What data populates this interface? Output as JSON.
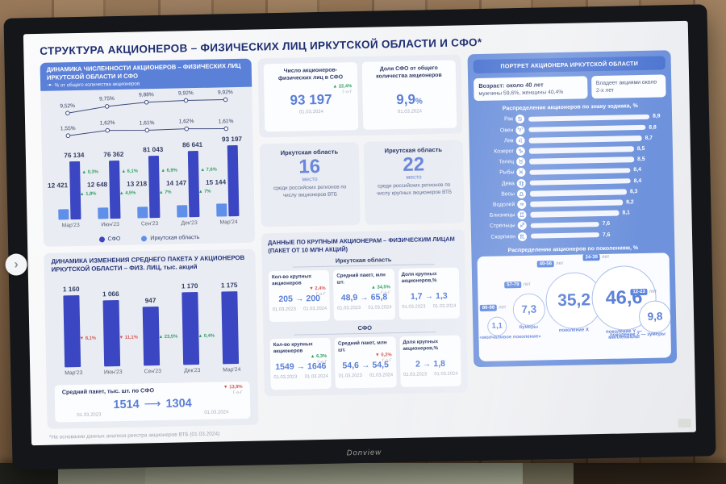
{
  "meta": {
    "brand": "Donview"
  },
  "page": {
    "title": "СТРУКТУРА АКЦИОНЕРОВ – ФИЗИЧЕСКИХ ЛИЦ ИРКУТСКОЙ ОБЛАСТИ И СФО*",
    "footnote": "*На основании данных анализа реестра акционеров ВТБ (01.03.2024)"
  },
  "colors": {
    "accent": "#5b7fd8",
    "dark_bar": "#3b47c2",
    "light_bar": "#5f8fe8",
    "panel_blue": "#6e92dc",
    "header_blue": "#5b80d8",
    "up": "#2f9e60",
    "down": "#d9534f",
    "navy": "#24316f"
  },
  "chart_data": [
    {
      "id": "shareholders_dynamics",
      "type": "bar",
      "title": "ДИНАМИКА ЧИСЛЕННОСТИ АКЦИОНЕРОВ – ФИЗИЧЕСКИХ ЛИЦ ИРКУТСКОЙ ОБЛАСТИ И СФО",
      "line_legend": "% от общего количества акционеров",
      "categories": [
        "Мар'23",
        "Июн'23",
        "Сен'23",
        "Дек'23",
        "Мар'24"
      ],
      "legend_position": "bottom",
      "series": [
        {
          "name": "СФО",
          "type": "bar",
          "values": [
            76134,
            76362,
            81043,
            86641,
            93197
          ],
          "labels": [
            "76 134",
            "76 362",
            "81 043",
            "86 641",
            "93 197"
          ],
          "deltas": [
            null,
            "▲ 0,3%",
            "▲ 6,1%",
            "▲ 6,9%",
            "▲ 7,6%"
          ]
        },
        {
          "name": "Иркутская область",
          "type": "bar",
          "values": [
            12421,
            12648,
            13218,
            14147,
            15144
          ],
          "labels": [
            "12 421",
            "12 648",
            "13 218",
            "14 147",
            "15 144"
          ],
          "deltas": [
            null,
            "▲ 1,8%",
            "▲ 4,5%",
            "▲ 7%",
            "▲ 7%"
          ]
        },
        {
          "name": "% СФО от общего количества акционеров",
          "type": "line",
          "values": [
            9.52,
            9.75,
            9.88,
            9.92,
            9.92
          ],
          "labels": [
            "9,52%",
            "9,75%",
            "9,88%",
            "9,92%",
            "9,92%"
          ]
        },
        {
          "name": "% Иркутской области от общего количества акционеров",
          "type": "line",
          "values": [
            1.55,
            1.62,
            1.61,
            1.62,
            1.61
          ],
          "labels": [
            "1,55%",
            "1,62%",
            "1,61%",
            "1,62%",
            "1,61%"
          ]
        }
      ]
    },
    {
      "id": "avg_package_dynamics",
      "type": "bar",
      "title": "ДИНАМИКА ИЗМЕНЕНИЯ СРЕДНЕГО ПАКЕТА У АКЦИОНЕРОВ ИРКУТСКОЙ ОБЛАСТИ – ФИЗ. ЛИЦ, тыс. акций",
      "categories": [
        "Мар'23",
        "Июн'23",
        "Сен'23",
        "Дек'23",
        "Мар'24"
      ],
      "values": [
        1160,
        1066,
        947,
        1170,
        1175
      ],
      "labels": [
        "1 160",
        "1 066",
        "947",
        "1 170",
        "1 175"
      ],
      "deltas": [
        null,
        "▼ 8,1%",
        "▼ 11,1%",
        "▲ 23,5%",
        "▲ 0,4%"
      ]
    },
    {
      "id": "zodiac_distribution",
      "type": "bar",
      "orientation": "horizontal",
      "title": "Распределение акционеров по знаку зодиака, %",
      "categories": [
        "Рак",
        "Овен",
        "Лев",
        "Козерог",
        "Телец",
        "Рыбы",
        "Дева",
        "Весы",
        "Водолей",
        "Близнецы",
        "Стрельцы",
        "Скорпион"
      ],
      "icons": [
        "♋",
        "♈",
        "♌",
        "♑",
        "♉",
        "♓",
        "♍",
        "♎",
        "♒",
        "♊",
        "♐",
        "♏"
      ],
      "values": [
        8.9,
        8.8,
        8.7,
        8.5,
        8.5,
        8.4,
        8.4,
        8.3,
        8.2,
        8.1,
        7.6,
        7.6
      ],
      "labels": [
        "8,9",
        "8,8",
        "8,7",
        "8,5",
        "8,5",
        "8,4",
        "8,4",
        "8,3",
        "8,2",
        "8,1",
        "7,6",
        "7,6"
      ]
    },
    {
      "id": "generations_distribution",
      "type": "bubble",
      "title": "Распределение акционеров по поколениям, %",
      "items": [
        {
          "age_range": "80-98",
          "age_suffix": "лет",
          "value": 1.1,
          "label": "1,1",
          "name": "«молчаливое поколение»"
        },
        {
          "age_range": "57-79",
          "age_suffix": "лет",
          "value": 7.3,
          "label": "7,3",
          "name": "бумеры"
        },
        {
          "age_range": "40-56",
          "age_suffix": "лет",
          "value": 35.2,
          "label": "35,2",
          "name": "поколение X"
        },
        {
          "age_range": "24-39",
          "age_suffix": "лет",
          "value": 46.6,
          "label": "46,6",
          "name": "поколение Y — миллениалы"
        },
        {
          "age_range": "12-23",
          "age_suffix": "лет",
          "value": 9.8,
          "label": "9,8",
          "name": "поколение Z — зумеры"
        }
      ]
    }
  ],
  "stat_cards": {
    "sfo_count": {
      "title": "Число акционеров-физических лиц в СФО",
      "delta": "▲ 22,4%",
      "delta_sub": "Г-о-Г",
      "value": "93 197",
      "date": "01.03.2024"
    },
    "sfo_share": {
      "title": "Доля СФО от общего количества акционеров",
      "value": "9,9",
      "suffix": "%",
      "date": "01.03.2024"
    }
  },
  "rank_cards": [
    {
      "region": "Иркутская область",
      "rank": "16",
      "rank_word": "место",
      "description": "среди российских регионов по числу акционеров ВТБ"
    },
    {
      "region": "Иркутская область",
      "rank": "22",
      "rank_word": "место",
      "description": "среди российских регионов по числу крупных акционеров ВТБ"
    }
  ],
  "avg_package_sfo": {
    "title": "Средний пакет, тыс. шт. по СФО",
    "delta": "▼ 13,9%",
    "delta_sub": "Г-о-Г",
    "from": "1514",
    "to": "1304",
    "date_from": "01.03.2023",
    "date_to": "01.03.2024"
  },
  "large_holders": {
    "title": "ДАННЫЕ ПО КРУПНЫМ АКЦИОНЕРАМ – ФИЗИЧЕСКИМ ЛИЦАМ (ПАКЕТ ОТ 10 МЛН АКЦИЙ)",
    "sections": [
      {
        "name": "Иркутская область",
        "cards": [
          {
            "title": "Кол-во крупных акционеров",
            "delta": "▼ 2,4%",
            "delta_sub": "Г-о-Г",
            "from": "205",
            "to": "200",
            "date_from": "01.03.2023",
            "date_to": "01.03.2024"
          },
          {
            "title": "Средний пакет, млн шт.",
            "delta": "▲ 34,5%",
            "delta_sub": "Г-о-Г",
            "from": "48,9",
            "to": "65,8",
            "date_from": "01.03.2023",
            "date_to": "01.03.2024"
          },
          {
            "title": "Доля крупных акционеров,%",
            "delta": "",
            "delta_sub": "",
            "from": "1,7",
            "to": "1,3",
            "date_from": "01.03.2023",
            "date_to": "01.03.2024"
          }
        ]
      },
      {
        "name": "СФО",
        "cards": [
          {
            "title": "Кол-во крупных акционеров",
            "delta": "▲ 6,3%",
            "delta_sub": "Г-о-Г",
            "from": "1549",
            "to": "1646",
            "date_from": "01.03.2023",
            "date_to": "01.03.2024"
          },
          {
            "title": "Средний пакет, млн шт.",
            "delta": "▼ 0,2%",
            "delta_sub": "Г-о-Г",
            "from": "54,6",
            "to": "54,5",
            "date_from": "01.03.2023",
            "date_to": "01.03.2024"
          },
          {
            "title": "Доля крупных акционеров,%",
            "delta": "",
            "delta_sub": "",
            "from": "2",
            "to": "1,8",
            "date_from": "01.03.2023",
            "date_to": "01.03.2024"
          }
        ]
      }
    ]
  },
  "portrait": {
    "title": "ПОРТРЕТ АКЦИОНЕРА ИРКУТСКОЙ ОБЛАСТИ",
    "age_line1": "Возраст: около 40 лет",
    "age_line2": "мужчины 59,6%, женщины 40,4%",
    "ownership": "Владеет акциями около 2-х лет"
  }
}
